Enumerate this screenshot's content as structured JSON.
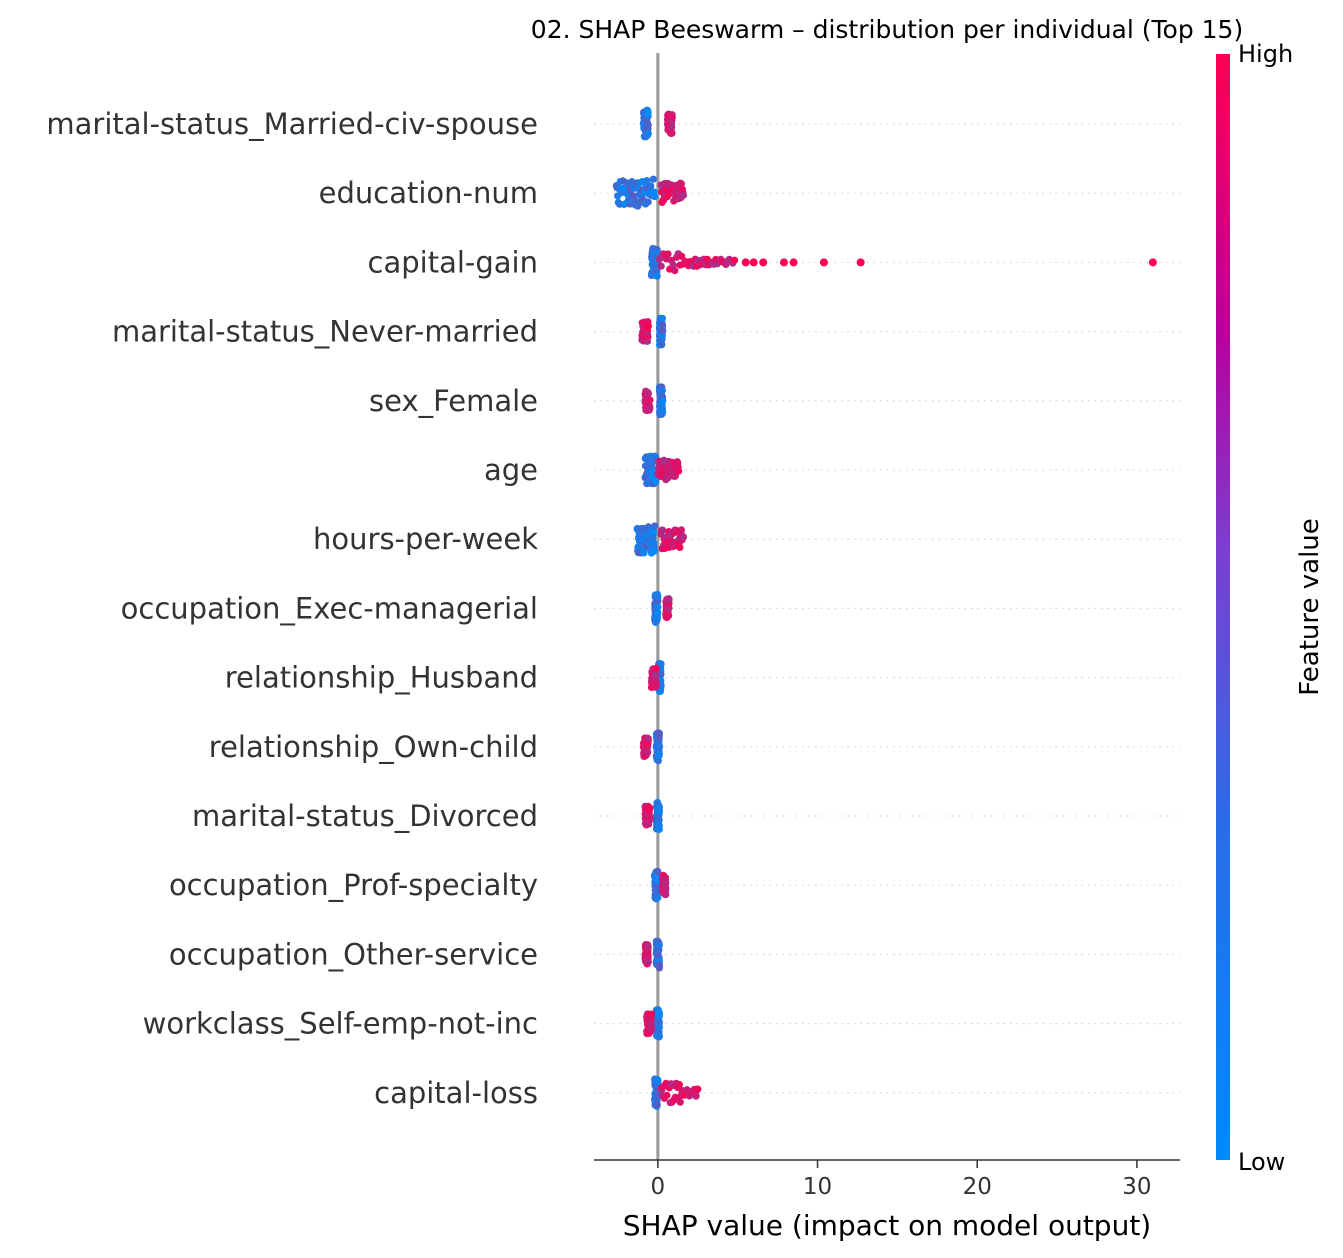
{
  "chart_data": {
    "type": "scatter",
    "subtype": "shap-beeswarm",
    "title": "02. SHAP Beeswarm – distribution per individual (Top 15)",
    "xlabel": "SHAP value (impact on model output)",
    "xlim": [
      -4,
      32.7
    ],
    "xticks": [
      0,
      10,
      20,
      30
    ],
    "colorbar": {
      "title": "Feature value",
      "high_label": "High",
      "low_label": "Low",
      "low_color": "#008bfb",
      "high_color": "#ff0052"
    },
    "features": [
      {
        "name": "marital-status_Married-civ-spouse",
        "low": {
          "min": -0.9,
          "max": -0.6
        },
        "high": {
          "min": 0.6,
          "max": 0.9
        },
        "high_outliers": []
      },
      {
        "name": "education-num",
        "low": {
          "min": -2.6,
          "max": -0.2
        },
        "high": {
          "min": 0.2,
          "max": 1.6
        },
        "high_outliers": []
      },
      {
        "name": "capital-gain",
        "low": {
          "min": -0.4,
          "max": 0.0
        },
        "high": {
          "min": 0.1,
          "max": 4.8
        },
        "high_outliers": [
          5.5,
          6.0,
          6.6,
          7.9,
          8.5,
          10.4,
          12.7,
          31.0
        ]
      },
      {
        "name": "marital-status_Never-married",
        "low": {
          "min": 0.1,
          "max": 0.3
        },
        "high": {
          "min": -1.0,
          "max": -0.6
        },
        "high_outliers": []
      },
      {
        "name": "sex_Female",
        "low": {
          "min": 0.1,
          "max": 0.3
        },
        "high": {
          "min": -0.8,
          "max": -0.5
        },
        "high_outliers": []
      },
      {
        "name": "age",
        "low": {
          "min": -0.8,
          "max": -0.1
        },
        "high": {
          "min": 0.0,
          "max": 1.3
        },
        "high_outliers": []
      },
      {
        "name": "hours-per-week",
        "low": {
          "min": -1.3,
          "max": -0.2
        },
        "high": {
          "min": 0.2,
          "max": 1.6
        },
        "high_outliers": []
      },
      {
        "name": "occupation_Exec-managerial",
        "low": {
          "min": -0.2,
          "max": 0.0
        },
        "high": {
          "min": 0.5,
          "max": 0.7
        },
        "high_outliers": []
      },
      {
        "name": "relationship_Husband",
        "low": {
          "min": 0.0,
          "max": 0.2
        },
        "high": {
          "min": -0.4,
          "max": -0.1
        },
        "high_outliers": []
      },
      {
        "name": "relationship_Own-child",
        "low": {
          "min": -0.1,
          "max": 0.1
        },
        "high": {
          "min": -0.9,
          "max": -0.6
        },
        "high_outliers": []
      },
      {
        "name": "marital-status_Divorced",
        "low": {
          "min": -0.1,
          "max": 0.1
        },
        "high": {
          "min": -0.8,
          "max": -0.5
        },
        "high_outliers": []
      },
      {
        "name": "occupation_Prof-specialty",
        "low": {
          "min": -0.2,
          "max": 0.0
        },
        "high": {
          "min": 0.3,
          "max": 0.5
        },
        "high_outliers": []
      },
      {
        "name": "occupation_Other-service",
        "low": {
          "min": -0.1,
          "max": 0.1
        },
        "high": {
          "min": -0.8,
          "max": -0.6
        },
        "high_outliers": []
      },
      {
        "name": "workclass_Self-emp-not-inc",
        "low": {
          "min": -0.1,
          "max": 0.1
        },
        "high": {
          "min": -0.7,
          "max": -0.4
        },
        "high_outliers": []
      },
      {
        "name": "capital-loss",
        "low": {
          "min": -0.2,
          "max": 0.0
        },
        "high": {
          "min": 0.2,
          "max": 2.5
        },
        "high_outliers": []
      }
    ]
  }
}
